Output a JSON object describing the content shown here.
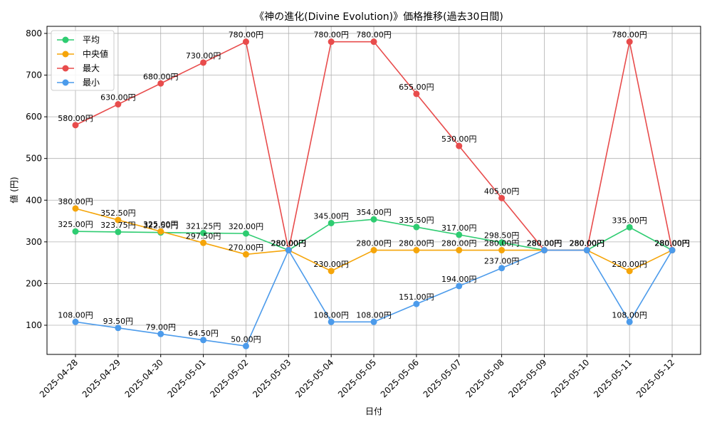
{
  "chart_data": {
    "type": "line",
    "title": "《神の進化(Divine Evolution)》価格推移(過去30日間)",
    "xlabel": "日付",
    "ylabel": "値 (円)",
    "ylim": [
      30,
      817
    ],
    "yticks": [
      100,
      200,
      300,
      400,
      500,
      600,
      700,
      800
    ],
    "grid": true,
    "legend_position": "top-left",
    "value_suffix": "円",
    "categories": [
      "2025-04-28",
      "2025-04-29",
      "2025-04-30",
      "2025-05-01",
      "2025-05-02",
      "2025-05-03",
      "2025-05-04",
      "2025-05-05",
      "2025-05-06",
      "2025-05-07",
      "2025-05-08",
      "2025-05-09",
      "2025-05-10",
      "2025-05-11",
      "2025-05-12"
    ],
    "series": [
      {
        "name": "平均",
        "color": "#2ecc71",
        "values": [
          325.0,
          323.75,
          322.5,
          321.25,
          320.0,
          280.0,
          345.0,
          354.0,
          335.5,
          317.0,
          298.5,
          280.0,
          280.0,
          335.0,
          280.0
        ]
      },
      {
        "name": "中央値",
        "color": "#f5a50a",
        "values": [
          380.0,
          352.5,
          325.0,
          297.5,
          270.0,
          280.0,
          230.0,
          280.0,
          280.0,
          280.0,
          280.0,
          280.0,
          280.0,
          230.0,
          280.0
        ]
      },
      {
        "name": "最大",
        "color": "#e84c4c",
        "values": [
          580.0,
          630.0,
          680.0,
          730.0,
          780.0,
          280.0,
          780.0,
          780.0,
          655.0,
          530.0,
          405.0,
          280.0,
          280.0,
          780.0,
          280.0
        ]
      },
      {
        "name": "最小",
        "color": "#4c9beb",
        "values": [
          108.0,
          93.5,
          79.0,
          64.5,
          50.0,
          280.0,
          108.0,
          108.0,
          151.0,
          194.0,
          237.0,
          280.0,
          280.0,
          108.0,
          280.0
        ]
      }
    ]
  }
}
